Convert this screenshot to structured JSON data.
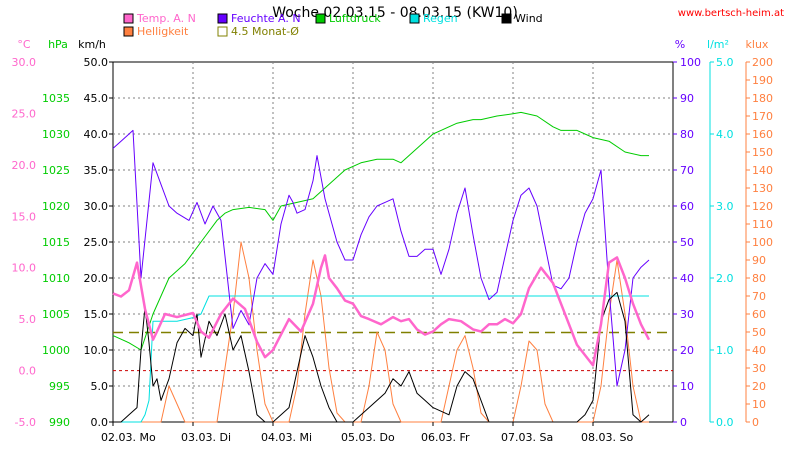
{
  "title": "Woche 02.03.15 - 08.03.15 (KW10)",
  "site": "www.bertsch-heim.at",
  "legend": [
    {
      "label": "Temp. A. N",
      "color": "#ff66cc"
    },
    {
      "label": "Helligkeit",
      "color": "#ff8040"
    },
    {
      "label": "Feuchte A. N",
      "color": "#6600ff"
    },
    {
      "label": "4.5 Monat-Ø",
      "color": "#808000"
    },
    {
      "label": "Luftdruck",
      "color": "#00cc00"
    },
    {
      "label": "Regen",
      "color": "#00e0e0"
    },
    {
      "label": "Wind",
      "color": "#000000"
    }
  ],
  "chart_data": {
    "type": "line",
    "title": "Woche 02.03.15 - 08.03.15 (KW10)",
    "x_labels": [
      "02.03.  Mo",
      "03.03.  Di",
      "04.03.  Mi",
      "05.03.  Do",
      "06.03.  Fr",
      "07.03.  Sa",
      "08.03.  So"
    ],
    "axes": {
      "temp": {
        "unit": "°C",
        "min": -5,
        "max": 30,
        "ticks": [
          "-5.0",
          "0.0",
          "5.0",
          "10.0",
          "15.0",
          "20.0",
          "25.0",
          "30.0"
        ],
        "color": "#ff66cc"
      },
      "press": {
        "unit": "hPa",
        "min": 990,
        "max": 1040,
        "ticks": [
          "990",
          "995",
          "1000",
          "1005",
          "1010",
          "1015",
          "1020",
          "1025",
          "1030",
          "1035"
        ],
        "color": "#00cc00"
      },
      "wind": {
        "unit": "km/h",
        "min": 0,
        "max": 50,
        "ticks": [
          "0.0",
          "5.0",
          "10.0",
          "15.0",
          "20.0",
          "25.0",
          "30.0",
          "35.0",
          "40.0",
          "45.0",
          "50.0"
        ],
        "color": "#000000"
      },
      "hum": {
        "unit": "%",
        "min": 0,
        "max": 100,
        "ticks": [
          "0",
          "10",
          "20",
          "30",
          "40",
          "50",
          "60",
          "70",
          "80",
          "90",
          "100"
        ],
        "color": "#6600ff"
      },
      "rain": {
        "unit": "l/m²",
        "min": 0,
        "max": 5,
        "ticks": [
          "0.0",
          "1.0",
          "2.0",
          "3.0",
          "4.0",
          "5.0"
        ],
        "color": "#00e0e0"
      },
      "lux": {
        "unit": "klux",
        "min": 0,
        "max": 200,
        "ticks": [
          "0",
          "10",
          "20",
          "30",
          "40",
          "50",
          "60",
          "70",
          "80",
          "90",
          "100",
          "110",
          "120",
          "130",
          "140",
          "150",
          "160",
          "170",
          "180",
          "190",
          "200"
        ],
        "color": "#ff8040"
      }
    },
    "reference_lines": {
      "temp_zero": 0.0,
      "monat_avg_temp": 3.7
    },
    "series": [
      {
        "name": "Temp. A. N",
        "axis": "temp",
        "color": "#ff66cc",
        "x": [
          0,
          0.1,
          0.2,
          0.3,
          0.4,
          0.5,
          0.55,
          0.65,
          0.8,
          1.0,
          1.1,
          1.2,
          1.35,
          1.5,
          1.65,
          1.8,
          1.9,
          2.0,
          2.1,
          2.2,
          2.3,
          2.35,
          2.5,
          2.6,
          2.65,
          2.7,
          2.8,
          2.9,
          3.0,
          3.1,
          3.2,
          3.35,
          3.5,
          3.6,
          3.7,
          3.8,
          3.9,
          4.0,
          4.1,
          4.2,
          4.35,
          4.5,
          4.6,
          4.7,
          4.8,
          4.9,
          5.0,
          5.1,
          5.2,
          5.35,
          5.5,
          5.6,
          5.7,
          5.8,
          5.9,
          6.0,
          6.1,
          6.2,
          6.3,
          6.4,
          6.5,
          6.6,
          6.7
        ],
        "y": [
          7.5,
          7.2,
          7.8,
          10.5,
          6.0,
          3.0,
          3.8,
          5.5,
          5.2,
          5.6,
          3.8,
          3.2,
          5.5,
          7.0,
          6.0,
          2.8,
          1.3,
          2.0,
          3.5,
          5.0,
          4.2,
          3.8,
          6.5,
          10.0,
          11.2,
          9.0,
          8.0,
          6.8,
          6.5,
          5.3,
          5.0,
          4.5,
          5.2,
          4.8,
          5.0,
          4.0,
          3.5,
          3.8,
          4.5,
          5.0,
          4.8,
          4.0,
          3.8,
          4.5,
          4.5,
          5.0,
          4.6,
          5.5,
          8.0,
          10.0,
          8.5,
          6.5,
          4.5,
          2.5,
          1.5,
          0.5,
          4.5,
          10.5,
          11.0,
          9.0,
          6.5,
          4.5,
          3.0
        ]
      },
      {
        "name": "Feuchte A. N",
        "axis": "hum",
        "color": "#6600ff",
        "x": [
          0,
          0.1,
          0.25,
          0.35,
          0.5,
          0.6,
          0.7,
          0.8,
          0.95,
          1.05,
          1.15,
          1.25,
          1.35,
          1.5,
          1.6,
          1.7,
          1.8,
          1.9,
          2.0,
          2.1,
          2.2,
          2.25,
          2.3,
          2.4,
          2.5,
          2.55,
          2.65,
          2.7,
          2.8,
          2.9,
          3.0,
          3.1,
          3.2,
          3.3,
          3.4,
          3.5,
          3.6,
          3.7,
          3.8,
          3.9,
          4.0,
          4.1,
          4.2,
          4.3,
          4.4,
          4.5,
          4.6,
          4.7,
          4.8,
          4.9,
          5.0,
          5.1,
          5.2,
          5.3,
          5.4,
          5.5,
          5.6,
          5.7,
          5.8,
          5.9,
          6.0,
          6.1,
          6.2,
          6.3,
          6.4,
          6.5,
          6.6,
          6.7
        ],
        "y": [
          76,
          78,
          81,
          40,
          72,
          66,
          60,
          58,
          56,
          61,
          55,
          60,
          56,
          26,
          31,
          27,
          40,
          44,
          41,
          55,
          63,
          61,
          58,
          59,
          67,
          74,
          62,
          58,
          50,
          45,
          45,
          52,
          57,
          60,
          61,
          62,
          53,
          46,
          46,
          48,
          48,
          41,
          48,
          58,
          65,
          52,
          40,
          34,
          36,
          46,
          56,
          63,
          65,
          60,
          49,
          38,
          37,
          40,
          50,
          58,
          62,
          70,
          37,
          10,
          20,
          40,
          43,
          45
        ]
      },
      {
        "name": "Luftdruck",
        "axis": "press",
        "color": "#00cc00",
        "x": [
          0,
          0.2,
          0.35,
          0.5,
          0.7,
          0.9,
          1.1,
          1.3,
          1.4,
          1.5,
          1.7,
          1.9,
          2.0,
          2.1,
          2.3,
          2.5,
          2.7,
          2.9,
          3.1,
          3.3,
          3.5,
          3.6,
          3.8,
          4.0,
          4.1,
          4.3,
          4.5,
          4.6,
          4.8,
          5.0,
          5.1,
          5.3,
          5.5,
          5.6,
          5.8,
          5.9,
          6.0,
          6.2,
          6.4,
          6.6,
          6.7
        ],
        "y": [
          1002.0,
          1001.0,
          1000.0,
          1005.0,
          1010.0,
          1012.0,
          1015.0,
          1018.0,
          1019.0,
          1019.5,
          1019.8,
          1019.5,
          1018.0,
          1020.0,
          1020.5,
          1021.0,
          1023.0,
          1025.0,
          1026.0,
          1026.5,
          1026.5,
          1026.0,
          1028.0,
          1030.0,
          1030.5,
          1031.5,
          1032.0,
          1032.0,
          1032.5,
          1032.8,
          1033.0,
          1032.5,
          1031.0,
          1030.5,
          1030.5,
          1030.0,
          1029.5,
          1029.0,
          1027.5,
          1027.0,
          1027.0
        ]
      },
      {
        "name": "Regen",
        "axis": "rain",
        "color": "#00e0e0",
        "x": [
          0,
          0.1,
          0.15,
          0.2,
          0.25,
          0.3,
          0.35,
          0.4,
          0.45,
          0.5,
          0.6,
          0.8,
          1.0,
          1.1,
          1.2,
          1.3,
          1.5,
          2.0,
          2.5,
          3.0,
          3.5,
          4.0,
          4.5,
          5.0,
          5.5,
          6.0,
          6.2,
          6.3,
          6.4,
          6.5,
          6.6,
          6.7
        ],
        "y": [
          0,
          0,
          0,
          0,
          0,
          0,
          0,
          0.1,
          0.3,
          1.4,
          1.4,
          1.4,
          1.45,
          1.5,
          1.75,
          1.75,
          1.75,
          1.75,
          1.75,
          1.75,
          1.75,
          1.75,
          1.75,
          1.75,
          1.75,
          1.75,
          1.75,
          1.75,
          1.75,
          1.75,
          1.75,
          1.75
        ],
        "note": "cumulative"
      },
      {
        "name": "Helligkeit",
        "axis": "lux",
        "color": "#ff8040",
        "x": [
          0,
          0.5,
          0.6,
          0.7,
          0.8,
          0.9,
          1.0,
          1.1,
          1.3,
          1.4,
          1.5,
          1.6,
          1.7,
          1.8,
          1.9,
          2.0,
          2.1,
          2.2,
          2.3,
          2.4,
          2.5,
          2.6,
          2.7,
          2.8,
          2.9,
          3.0,
          3.1,
          3.2,
          3.3,
          3.4,
          3.5,
          3.6,
          3.7,
          3.8,
          3.9,
          4.0,
          4.1,
          4.2,
          4.3,
          4.4,
          4.5,
          4.6,
          4.7,
          4.8,
          4.9,
          5.0,
          5.1,
          5.2,
          5.3,
          5.4,
          5.5,
          5.6,
          5.7,
          5.8,
          5.9,
          6.0,
          6.1,
          6.2,
          6.3,
          6.4,
          6.5,
          6.6,
          6.7
        ],
        "y": [
          0,
          0,
          0,
          20,
          10,
          0,
          0,
          0,
          0,
          30,
          60,
          100,
          80,
          40,
          10,
          0,
          0,
          0,
          20,
          60,
          90,
          70,
          30,
          5,
          0,
          0,
          0,
          20,
          50,
          40,
          10,
          0,
          0,
          0,
          0,
          0,
          0,
          20,
          40,
          48,
          30,
          5,
          0,
          0,
          0,
          0,
          20,
          45,
          40,
          10,
          0,
          0,
          0,
          0,
          0,
          0,
          20,
          60,
          90,
          60,
          20,
          0,
          0
        ]
      },
      {
        "name": "Wind",
        "axis": "wind",
        "color": "#000000",
        "x": [
          0,
          0.1,
          0.2,
          0.3,
          0.35,
          0.4,
          0.45,
          0.5,
          0.55,
          0.6,
          0.7,
          0.8,
          0.9,
          1.0,
          1.05,
          1.1,
          1.2,
          1.3,
          1.4,
          1.5,
          1.6,
          1.7,
          1.8,
          1.9,
          2.0,
          2.2,
          2.3,
          2.4,
          2.5,
          2.6,
          2.7,
          2.8,
          2.9,
          3.0,
          3.2,
          3.4,
          3.5,
          3.6,
          3.7,
          3.8,
          3.9,
          4.0,
          4.2,
          4.3,
          4.4,
          4.5,
          4.6,
          4.7,
          4.8,
          5.0,
          5.2,
          5.3,
          5.4,
          5.5,
          5.6,
          5.7,
          5.8,
          5.9,
          6.0,
          6.1,
          6.2,
          6.3,
          6.4,
          6.5,
          6.6,
          6.7
        ],
        "y": [
          0,
          0,
          1,
          2,
          10,
          16,
          11,
          5,
          6,
          3,
          6,
          11,
          13,
          12,
          15,
          9,
          14,
          12,
          15,
          10,
          12,
          7,
          1,
          0,
          0,
          2,
          7,
          12,
          9,
          5,
          2,
          0,
          0,
          0,
          2,
          4,
          6,
          5,
          7,
          4,
          3,
          2,
          1,
          5,
          7,
          6,
          3,
          0,
          0,
          0,
          0,
          0,
          0,
          0,
          0,
          0,
          0,
          1,
          3,
          14,
          17,
          18,
          14,
          1,
          0,
          1
        ]
      }
    ]
  }
}
